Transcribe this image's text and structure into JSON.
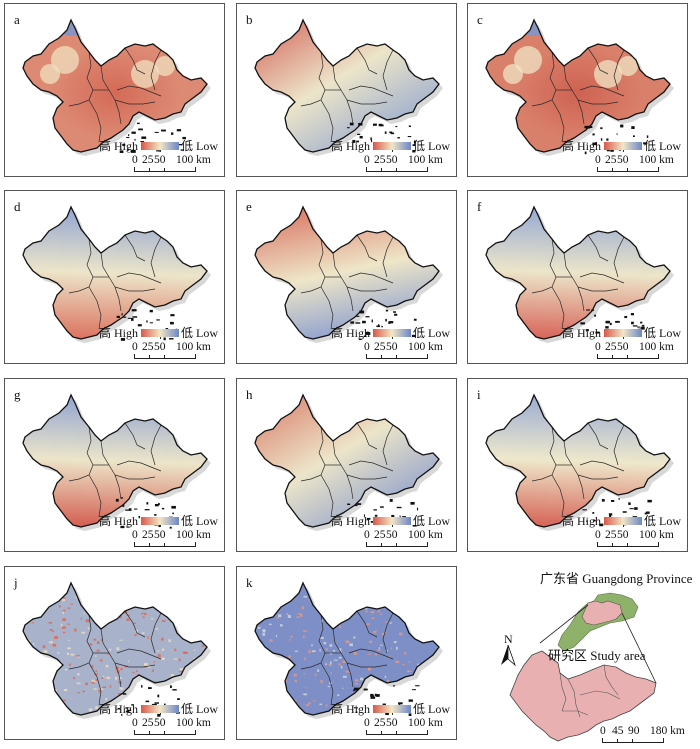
{
  "figure": {
    "legend": {
      "high_label": "高 High",
      "low_label": "低 Low",
      "ramp_colors": [
        "#d9584a",
        "#f2e6c4",
        "#6b86c9"
      ]
    },
    "scalebar": {
      "labels": [
        "0",
        "25",
        "50",
        "100 km"
      ]
    },
    "panels": [
      {
        "id": "a",
        "label": "a",
        "pattern": "mostly-high-red",
        "colors": {
          "base": "#dd8a74",
          "hot": "#d46a57",
          "cool": "#f0e0c0",
          "blue": "#7f95c9"
        }
      },
      {
        "id": "b",
        "label": "b",
        "pattern": "northwest-high-southeast-low",
        "colors": {
          "nw": "#d8766a",
          "mid": "#ece5c9",
          "se": "#8aa0cf"
        }
      },
      {
        "id": "c",
        "label": "c",
        "pattern": "mostly-high-red",
        "colors": {
          "base": "#d9806b",
          "hot": "#cf6252",
          "cool": "#f0e4c4",
          "blue": "#7f95c9"
        }
      },
      {
        "id": "d",
        "label": "d",
        "pattern": "north-low-south-high",
        "colors": {
          "n": "#8fa3d2",
          "mid": "#ece5c9",
          "s": "#dc7461"
        }
      },
      {
        "id": "e",
        "label": "e",
        "pattern": "north-high-south-low",
        "colors": {
          "n": "#da7d6b",
          "mid": "#eee6c8",
          "s": "#8599cf"
        }
      },
      {
        "id": "f",
        "label": "f",
        "pattern": "north-low-southwest-high",
        "colors": {
          "n": "#93a7d3",
          "mid": "#ece5c9",
          "s": "#d8655a"
        }
      },
      {
        "id": "g",
        "label": "g",
        "pattern": "north-low-southwest-high",
        "colors": {
          "n": "#8ea2d1",
          "mid": "#ece5c9",
          "s": "#d45f52"
        }
      },
      {
        "id": "h",
        "label": "h",
        "pattern": "west-high-southeast-low",
        "colors": {
          "nw": "#dc8a76",
          "mid": "#ece5c9",
          "se": "#8296cc"
        }
      },
      {
        "id": "i",
        "label": "i",
        "pattern": "north-low-south-high",
        "colors": {
          "n": "#98aad4",
          "mid": "#eee8cb",
          "s": "#d66457"
        }
      },
      {
        "id": "j",
        "label": "j",
        "pattern": "grey-blue-speckled-red",
        "colors": {
          "base": "#a8b3cb",
          "speck": "#d96a58",
          "pale": "#eddcbf"
        }
      },
      {
        "id": "k",
        "label": "k",
        "pattern": "blue-speckled",
        "colors": {
          "base": "#7d8fc6",
          "speck": "#e29a85",
          "pale": "#cfd3da"
        }
      }
    ],
    "inset": {
      "province_label": "广东省 Guangdong Province",
      "study_area_label": "研究区 Study area",
      "north_label": "N",
      "province_color": "#8fb26b",
      "study_area_color": "#e8b0b0",
      "scalebar": {
        "labels": [
          "0",
          "45",
          "90",
          "180 km"
        ]
      }
    }
  }
}
